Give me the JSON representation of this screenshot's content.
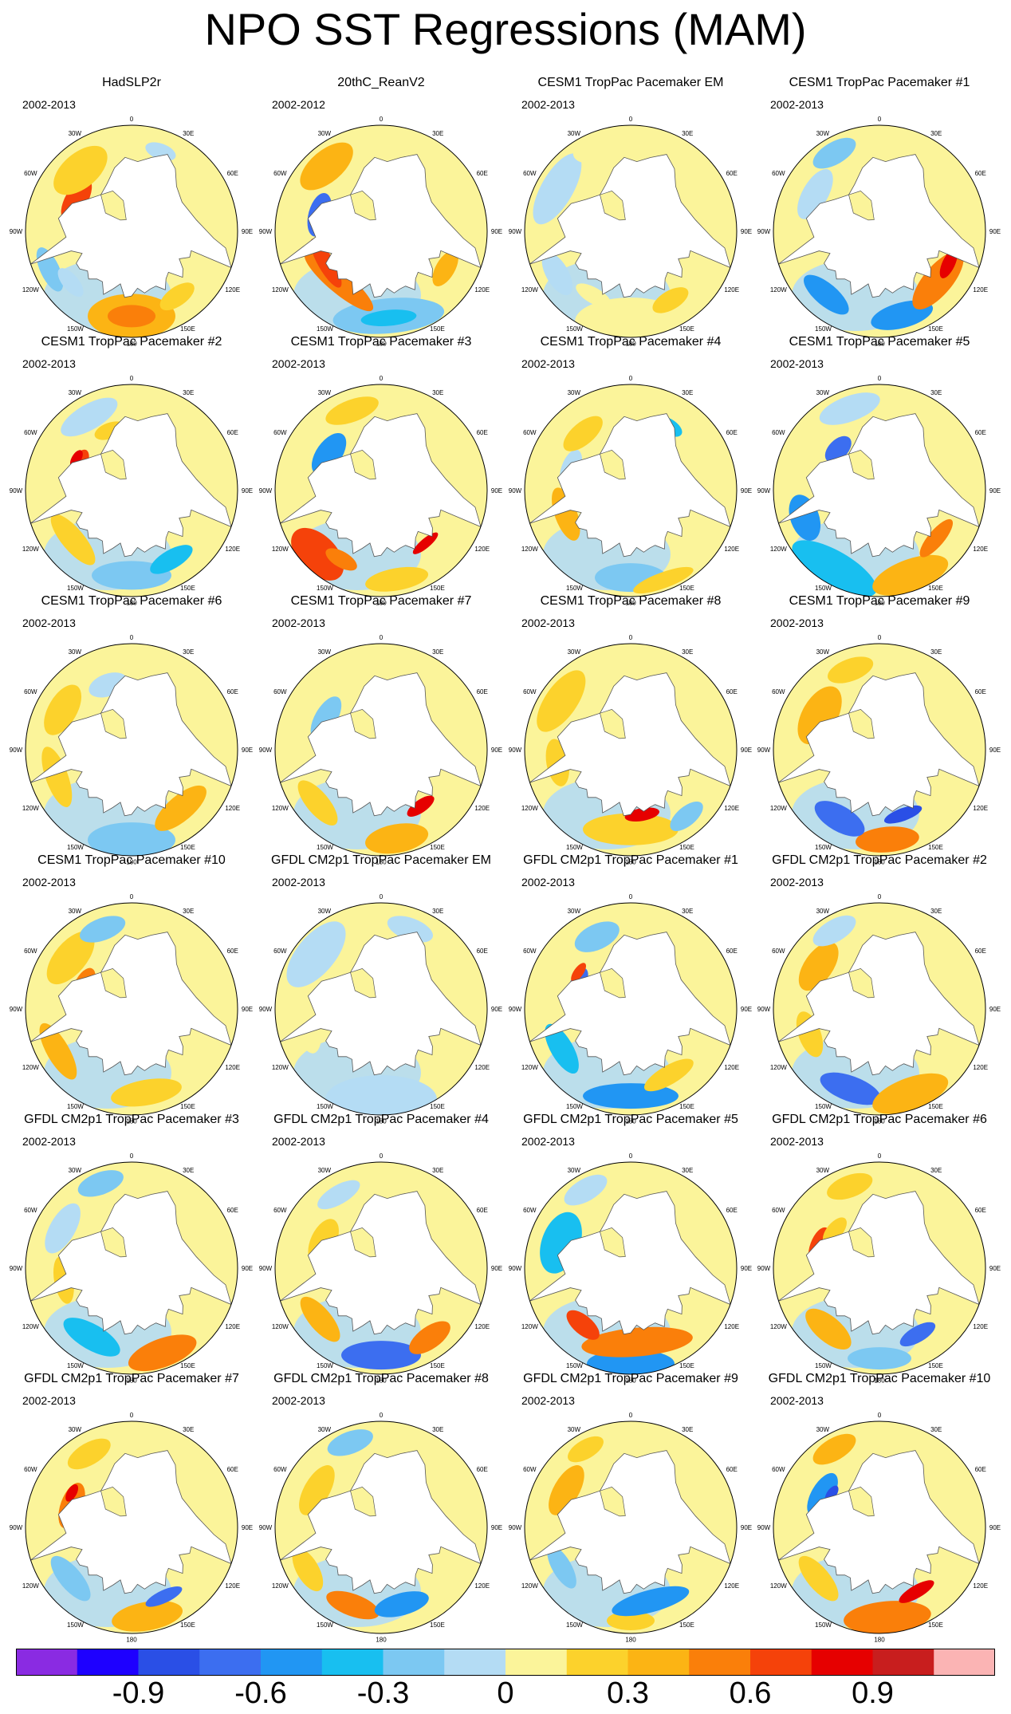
{
  "title": "NPO SST Regressions (MAM)",
  "map_labels": {
    "lon_180": "180",
    "lon_150w": "150W",
    "lon_150e": "150E",
    "lon_120w": "120W",
    "lon_120e": "120E",
    "lon_90w": "90W",
    "lon_90e": "90E",
    "lon_60w": "60W",
    "lon_60e": "60E",
    "lon_30w": "30W",
    "lon_30e": "30E",
    "lon_0": "0"
  },
  "panels": [
    {
      "title": "HadSLP2r",
      "period": "2002-2013"
    },
    {
      "title": "20thC_ReanV2",
      "period": "2002-2012"
    },
    {
      "title": "CESM1 TropPac Pacemaker EM",
      "period": "2002-2013"
    },
    {
      "title": "CESM1 TropPac Pacemaker #1",
      "period": "2002-2013"
    },
    {
      "title": "CESM1 TropPac Pacemaker #2",
      "period": "2002-2013"
    },
    {
      "title": "CESM1 TropPac Pacemaker #3",
      "period": "2002-2013"
    },
    {
      "title": "CESM1 TropPac Pacemaker #4",
      "period": "2002-2013"
    },
    {
      "title": "CESM1 TropPac Pacemaker #5",
      "period": "2002-2013"
    },
    {
      "title": "CESM1 TropPac Pacemaker #6",
      "period": "2002-2013"
    },
    {
      "title": "CESM1 TropPac Pacemaker #7",
      "period": "2002-2013"
    },
    {
      "title": "CESM1 TropPac Pacemaker #8",
      "period": "2002-2013"
    },
    {
      "title": "CESM1 TropPac Pacemaker #9",
      "period": "2002-2013"
    },
    {
      "title": "CESM1 TropPac Pacemaker #10",
      "period": "2002-2013"
    },
    {
      "title": "GFDL CM2p1 TropPac Pacemaker EM",
      "period": "2002-2013"
    },
    {
      "title": "GFDL CM2p1 TropPac Pacemaker #1",
      "period": "2002-2013"
    },
    {
      "title": "GFDL CM2p1 TropPac Pacemaker #2",
      "period": "2002-2013"
    },
    {
      "title": "GFDL CM2p1 TropPac Pacemaker #3",
      "period": "2002-2013"
    },
    {
      "title": "GFDL CM2p1 TropPac Pacemaker #4",
      "period": "2002-2013"
    },
    {
      "title": "GFDL CM2p1 TropPac Pacemaker #5",
      "period": "2002-2013"
    },
    {
      "title": "GFDL CM2p1 TropPac Pacemaker #6",
      "period": "2002-2013"
    },
    {
      "title": "GFDL CM2p1 TropPac Pacemaker #7",
      "period": "2002-2013"
    },
    {
      "title": "GFDL CM2p1 TropPac Pacemaker #8",
      "period": "2002-2013"
    },
    {
      "title": "GFDL CM2p1 TropPac Pacemaker #9",
      "period": "2002-2013"
    },
    {
      "title": "GFDL CM2p1 TropPac Pacemaker #10",
      "period": "2002-2013"
    }
  ],
  "colorbar": {
    "colors": [
      "#8a2be2",
      "#1e00ff",
      "#2a4fe6",
      "#3c6ef0",
      "#2196f3",
      "#18bff0",
      "#7cc8f2",
      "#b4dcf4",
      "#fbf49a",
      "#fcd22c",
      "#fcb414",
      "#fa7f0a",
      "#f5420a",
      "#e60000",
      "#c81e1e",
      "#fbb4b4"
    ],
    "ticks": [
      {
        "label": "-0.9",
        "boundary": 2
      },
      {
        "label": "-0.6",
        "boundary": 4
      },
      {
        "label": "-0.3",
        "boundary": 6
      },
      {
        "label": "0",
        "boundary": 8
      },
      {
        "label": "0.3",
        "boundary": 10
      },
      {
        "label": "0.6",
        "boundary": 12
      },
      {
        "label": "0.9",
        "boundary": 14
      }
    ]
  }
}
